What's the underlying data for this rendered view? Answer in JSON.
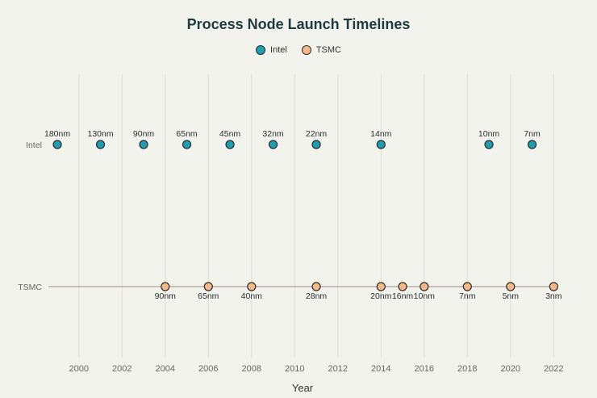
{
  "chart_data": {
    "type": "scatter",
    "title": "Process Node Launch Timelines",
    "xlabel": "Year",
    "ylabel": "",
    "xlim": [
      1998.4,
      2022.4
    ],
    "x_ticks": [
      2000,
      2002,
      2004,
      2006,
      2008,
      2010,
      2012,
      2014,
      2016,
      2018,
      2020,
      2022
    ],
    "categories": [
      "Intel",
      "TSMC"
    ],
    "legend_position": "top-center",
    "grid": "vertical",
    "series": [
      {
        "name": "Intel",
        "color": "#1f9db1",
        "category": "Intel",
        "label_position": "above",
        "points": [
          {
            "x": 1999,
            "label": "180nm"
          },
          {
            "x": 2001,
            "label": "130nm"
          },
          {
            "x": 2003,
            "label": "90nm"
          },
          {
            "x": 2005,
            "label": "65nm"
          },
          {
            "x": 2007,
            "label": "45nm"
          },
          {
            "x": 2009,
            "label": "32nm"
          },
          {
            "x": 2011,
            "label": "22nm"
          },
          {
            "x": 2014,
            "label": "14nm"
          },
          {
            "x": 2019,
            "label": "10nm"
          },
          {
            "x": 2021,
            "label": "7nm"
          }
        ]
      },
      {
        "name": "TSMC",
        "color": "#f5b888",
        "category": "TSMC",
        "label_position": "below",
        "points": [
          {
            "x": 2004,
            "label": "90nm"
          },
          {
            "x": 2006,
            "label": "65nm"
          },
          {
            "x": 2008,
            "label": "40nm"
          },
          {
            "x": 2011,
            "label": "28nm"
          },
          {
            "x": 2014,
            "label": "20nm"
          },
          {
            "x": 2015,
            "label": "16nm"
          },
          {
            "x": 2016,
            "label": "10nm"
          },
          {
            "x": 2018,
            "label": "7nm"
          },
          {
            "x": 2020,
            "label": "5nm"
          },
          {
            "x": 2022,
            "label": "3nm"
          }
        ]
      }
    ]
  }
}
